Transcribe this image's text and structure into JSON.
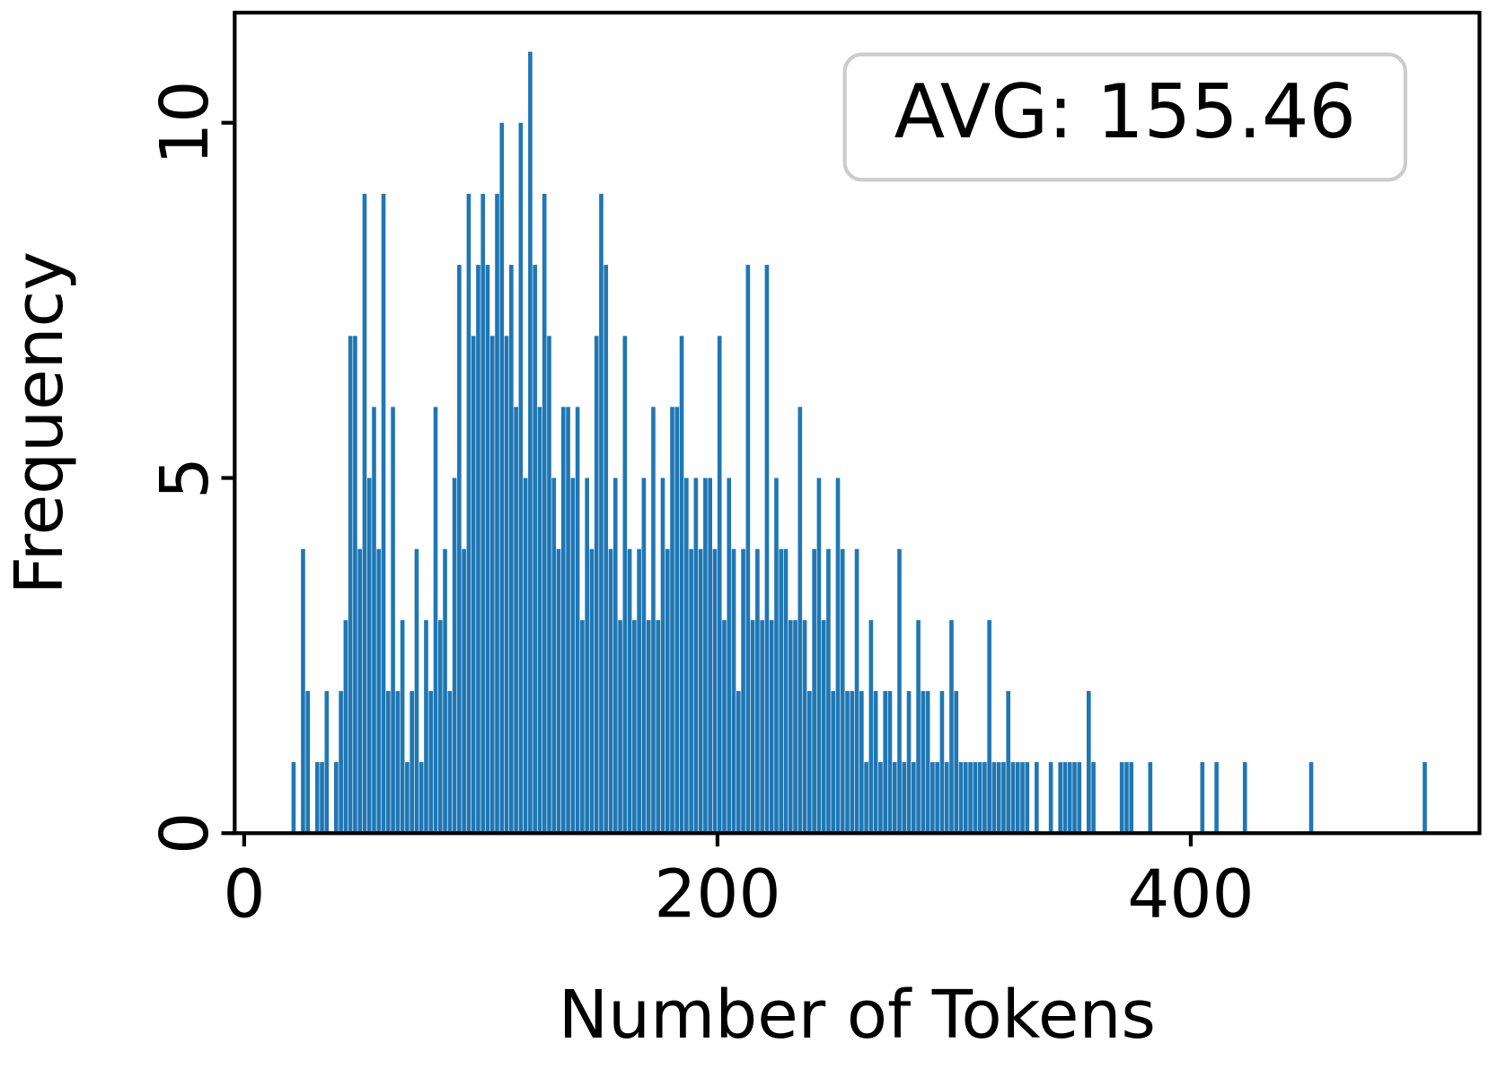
{
  "chart_data": {
    "type": "histogram",
    "annotation": "AVG: 155.46",
    "xlabel": "Number of Tokens",
    "ylabel": "Frequency",
    "color": "#1f77b4",
    "xlim": [
      -4,
      522
    ],
    "xticks": [
      0,
      200,
      400
    ],
    "ylim": [
      0,
      11.55
    ],
    "yticks": [
      0,
      5,
      10
    ],
    "bins": [
      20,
      22,
      24,
      26,
      28,
      30,
      32,
      34,
      36,
      38,
      40,
      42,
      44,
      46,
      48,
      50,
      52,
      54,
      56,
      58,
      60,
      62,
      64,
      66,
      68,
      70,
      72,
      74,
      76,
      78,
      80,
      82,
      84,
      86,
      88,
      90,
      92,
      94,
      96,
      98,
      100,
      102,
      104,
      106,
      108,
      110,
      112,
      114,
      116,
      118,
      120,
      122,
      124,
      126,
      128,
      130,
      132,
      134,
      136,
      138,
      140,
      142,
      144,
      146,
      148,
      150,
      152,
      154,
      156,
      158,
      160,
      162,
      164,
      166,
      168,
      170,
      172,
      174,
      176,
      178,
      180,
      182,
      184,
      186,
      188,
      190,
      192,
      194,
      196,
      198,
      200,
      202,
      204,
      206,
      208,
      210,
      212,
      214,
      216,
      218,
      220,
      222,
      224,
      226,
      228,
      230,
      232,
      234,
      236,
      238,
      240,
      242,
      244,
      246,
      248,
      250,
      252,
      254,
      256,
      258,
      260,
      262,
      264,
      266,
      268,
      270,
      272,
      274,
      276,
      278,
      280,
      282,
      284,
      286,
      288,
      290,
      292,
      294,
      296,
      298,
      300,
      302,
      304,
      306,
      308,
      310,
      312,
      314,
      316,
      318,
      320,
      322,
      324,
      326,
      328,
      330,
      332,
      334,
      336,
      338,
      340,
      342,
      344,
      346,
      348,
      350,
      352,
      354,
      356,
      358,
      360,
      362,
      364,
      366,
      368,
      370,
      372,
      374,
      376,
      378,
      380,
      382,
      384,
      386,
      388,
      390,
      392,
      394,
      396,
      398,
      400,
      402,
      404,
      406,
      408,
      410,
      412,
      414,
      416,
      418,
      420,
      422,
      424,
      426,
      428,
      430,
      432,
      434,
      436,
      438,
      440,
      442,
      444,
      446,
      448,
      450,
      452,
      454,
      456,
      458,
      460,
      462,
      464,
      466,
      468,
      470,
      472,
      474,
      476,
      478,
      480,
      482,
      484,
      486,
      488,
      490,
      492,
      494,
      496,
      498,
      500
    ],
    "values": [
      1,
      0,
      4,
      2,
      0,
      1,
      1,
      2,
      0,
      1,
      2,
      3,
      7,
      7,
      4,
      9,
      5,
      6,
      4,
      9,
      2,
      6,
      2,
      3,
      1,
      2,
      4,
      1,
      3,
      2,
      6,
      3,
      4,
      2,
      5,
      8,
      4,
      9,
      7,
      8,
      9,
      8,
      7,
      9,
      10,
      7,
      8,
      6,
      10,
      5,
      11,
      8,
      6,
      9,
      7,
      5,
      4,
      6,
      6,
      5,
      6,
      3,
      5,
      4,
      7,
      9,
      8,
      4,
      5,
      3,
      7,
      4,
      3,
      4,
      5,
      3,
      6,
      3,
      5,
      4,
      6,
      6,
      7,
      5,
      4,
      5,
      4,
      5,
      5,
      4,
      7,
      3,
      5,
      4,
      2,
      4,
      8,
      3,
      4,
      3,
      8,
      3,
      5,
      4,
      4,
      3,
      3,
      6,
      3,
      2,
      4,
      5,
      3,
      4,
      2,
      5,
      4,
      2,
      2,
      4,
      2,
      1,
      3,
      2,
      1,
      2,
      2,
      1,
      4,
      1,
      2,
      1,
      3,
      2,
      2,
      1,
      1,
      2,
      1,
      3,
      2,
      1,
      1,
      1,
      1,
      1,
      1,
      3,
      1,
      1,
      1,
      2,
      1,
      1,
      1,
      1,
      0,
      1,
      0,
      0,
      1,
      0,
      1,
      1,
      1,
      1,
      1,
      0,
      2,
      1,
      0,
      0,
      0,
      0,
      0,
      1,
      1,
      1,
      0,
      0,
      0,
      1,
      0,
      0,
      0,
      0,
      0,
      0,
      0,
      0,
      0,
      0,
      1,
      0,
      0,
      1,
      0,
      0,
      0,
      0,
      0,
      1,
      0,
      0,
      0,
      0,
      0,
      0,
      0,
      0,
      0,
      0,
      0,
      0,
      0,
      1,
      0,
      0,
      0,
      0,
      0,
      0,
      0,
      0,
      0,
      0,
      0,
      0,
      0,
      0,
      0,
      0,
      0,
      0,
      0,
      0,
      0,
      0,
      0,
      1
    ]
  }
}
